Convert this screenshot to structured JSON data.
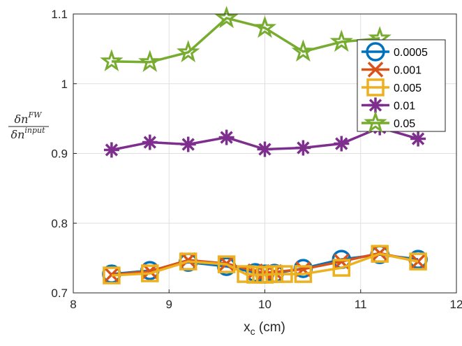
{
  "chart_data": {
    "type": "line",
    "xlabel": "x",
    "xlabel_sub": "c",
    "xlabel_unit": " (cm)",
    "ylabel": {
      "num_base": "δn",
      "num_sup": "FW",
      "den_base": "δn",
      "den_sup": "input"
    },
    "xlim": [
      8,
      12
    ],
    "ylim": [
      0.7,
      1.1
    ],
    "x_ticks": [
      8,
      9,
      10,
      11,
      12
    ],
    "y_ticks": [
      0.7,
      0.8,
      0.9,
      1,
      1.1
    ],
    "x_tick_labels": [
      "8",
      "9",
      "10",
      "11",
      "12"
    ],
    "y_tick_labels": [
      "0.7",
      "0.8",
      "0.9",
      "1",
      "1.1"
    ],
    "grid": true,
    "legend_position": "top-right",
    "series": [
      {
        "name": "0.0005",
        "marker": "circle",
        "color": "#0072BD",
        "points": [
          [
            8.4,
            0.727
          ],
          [
            8.8,
            0.732
          ],
          [
            9.2,
            0.744
          ],
          [
            9.6,
            0.738
          ],
          [
            9.9,
            0.729
          ],
          [
            10.0,
            0.727
          ],
          [
            10.1,
            0.728
          ],
          [
            10.4,
            0.735
          ],
          [
            10.8,
            0.748
          ],
          [
            11.2,
            0.755
          ],
          [
            11.6,
            0.748
          ]
        ]
      },
      {
        "name": "0.001",
        "marker": "x",
        "color": "#D95319",
        "points": [
          [
            8.4,
            0.726
          ],
          [
            8.8,
            0.731
          ],
          [
            9.2,
            0.747
          ],
          [
            9.6,
            0.742
          ],
          [
            9.9,
            0.731
          ],
          [
            10.0,
            0.729
          ],
          [
            10.1,
            0.73
          ],
          [
            10.4,
            0.734
          ],
          [
            10.8,
            0.745
          ],
          [
            11.2,
            0.757
          ],
          [
            11.6,
            0.745
          ]
        ]
      },
      {
        "name": "0.005",
        "marker": "square",
        "color": "#EDB120",
        "points": [
          [
            8.4,
            0.725
          ],
          [
            8.8,
            0.728
          ],
          [
            9.2,
            0.745
          ],
          [
            9.6,
            0.741
          ],
          [
            9.8,
            0.727
          ],
          [
            9.9,
            0.726
          ],
          [
            10.0,
            0.726
          ],
          [
            10.1,
            0.727
          ],
          [
            10.2,
            0.727
          ],
          [
            10.4,
            0.727
          ],
          [
            10.8,
            0.736
          ],
          [
            11.2,
            0.756
          ],
          [
            11.6,
            0.745
          ]
        ]
      },
      {
        "name": "0.01",
        "marker": "asterisk",
        "color": "#7E2F8E",
        "points": [
          [
            8.4,
            0.905
          ],
          [
            8.8,
            0.916
          ],
          [
            9.2,
            0.913
          ],
          [
            9.6,
            0.923
          ],
          [
            10.0,
            0.906
          ],
          [
            10.4,
            0.908
          ],
          [
            10.8,
            0.914
          ],
          [
            11.2,
            0.937
          ],
          [
            11.6,
            0.921
          ]
        ]
      },
      {
        "name": "0.05",
        "marker": "pentagram",
        "color": "#77AC30",
        "points": [
          [
            8.4,
            1.032
          ],
          [
            8.8,
            1.031
          ],
          [
            9.2,
            1.045
          ],
          [
            9.6,
            1.094
          ],
          [
            10.0,
            1.08
          ],
          [
            10.4,
            1.046
          ],
          [
            10.8,
            1.06
          ],
          [
            11.2,
            1.065
          ]
        ]
      }
    ]
  }
}
